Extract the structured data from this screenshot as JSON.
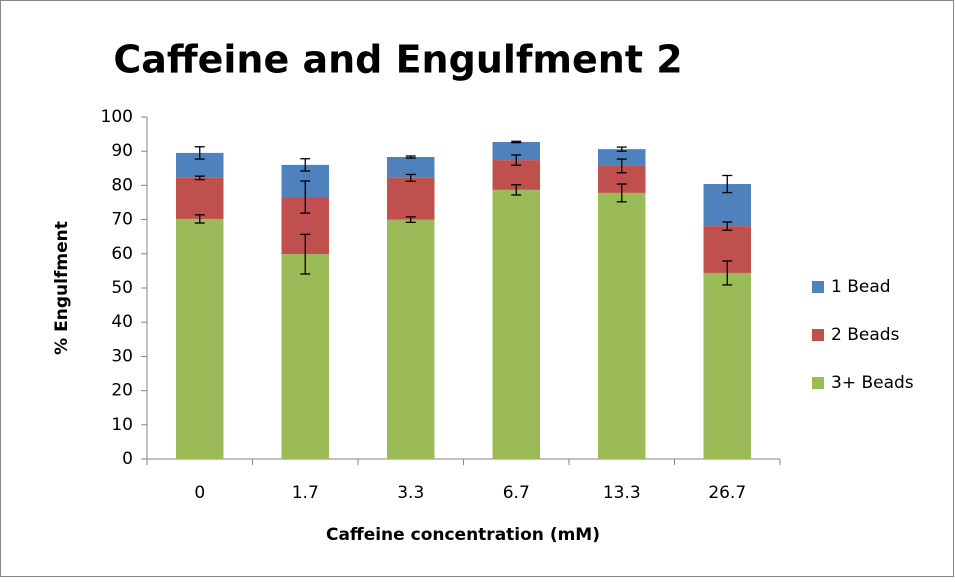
{
  "chart_data": {
    "type": "stacked_bar",
    "title": "Caffeine and Engulfment 2",
    "x_label": "Caffeine concentration (mM)",
    "y_label": "% Engulfment",
    "categories": [
      "0",
      "1.7",
      "3.3",
      "6.7",
      "13.3",
      "26.7"
    ],
    "series": [
      {
        "name": "3+ Beads",
        "color": "#9bbb59",
        "values": [
          70.2,
          59.9,
          70,
          78.7,
          77.8,
          54.4
        ],
        "errors": [
          1.2,
          5.8,
          0.8,
          1.5,
          2.6,
          3.5
        ]
      },
      {
        "name": "2 Beads",
        "color": "#c0504d",
        "values": [
          12,
          16.7,
          12.2,
          8.7,
          7.9,
          13.7
        ],
        "errors": [
          0.5,
          4.7,
          1,
          1.5,
          2,
          1.2
        ]
      },
      {
        "name": "1 Bead",
        "color": "#4f81bd",
        "values": [
          7.3,
          9.4,
          6.1,
          5.3,
          4.9,
          12.3
        ],
        "errors": [
          1.8,
          1.8,
          0.3,
          0.2,
          0.6,
          2.5
        ]
      }
    ],
    "ylim": [
      0,
      100
    ],
    "yticks": [
      0,
      10,
      20,
      30,
      40,
      50,
      60,
      70,
      80,
      90,
      100
    ],
    "grid": false,
    "legend": "right"
  }
}
